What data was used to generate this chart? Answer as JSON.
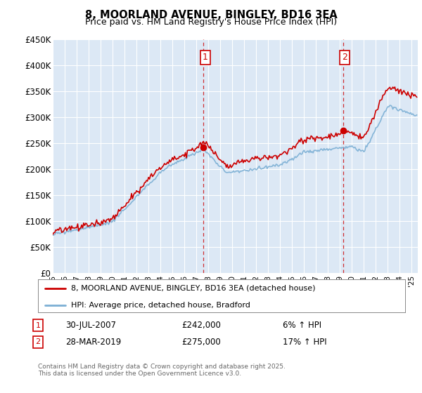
{
  "title": "8, MOORLAND AVENUE, BINGLEY, BD16 3EA",
  "subtitle": "Price paid vs. HM Land Registry's House Price Index (HPI)",
  "legend_line1": "8, MOORLAND AVENUE, BINGLEY, BD16 3EA (detached house)",
  "legend_line2": "HPI: Average price, detached house, Bradford",
  "annotation1_date": "30-JUL-2007",
  "annotation1_price": "£242,000",
  "annotation1_hpi": "6% ↑ HPI",
  "annotation2_date": "28-MAR-2019",
  "annotation2_price": "£275,000",
  "annotation2_hpi": "17% ↑ HPI",
  "footnote": "Contains HM Land Registry data © Crown copyright and database right 2025.\nThis data is licensed under the Open Government Licence v3.0.",
  "hpi_color": "#7bafd4",
  "price_color": "#cc0000",
  "vline_color": "#cc0000",
  "background_color": "#ffffff",
  "plot_background": "#dce8f5",
  "ylim": [
    0,
    450000
  ],
  "yticks": [
    0,
    50000,
    100000,
    150000,
    200000,
    250000,
    300000,
    350000,
    400000,
    450000
  ],
  "ytick_labels": [
    "£0",
    "£50K",
    "£100K",
    "£150K",
    "£200K",
    "£250K",
    "£300K",
    "£350K",
    "£400K",
    "£450K"
  ],
  "sale1_year": 2007.58,
  "sale1_price": 242000,
  "sale2_year": 2019.25,
  "sale2_price": 275000,
  "xlim_start": 1995.0,
  "xlim_end": 2025.5
}
